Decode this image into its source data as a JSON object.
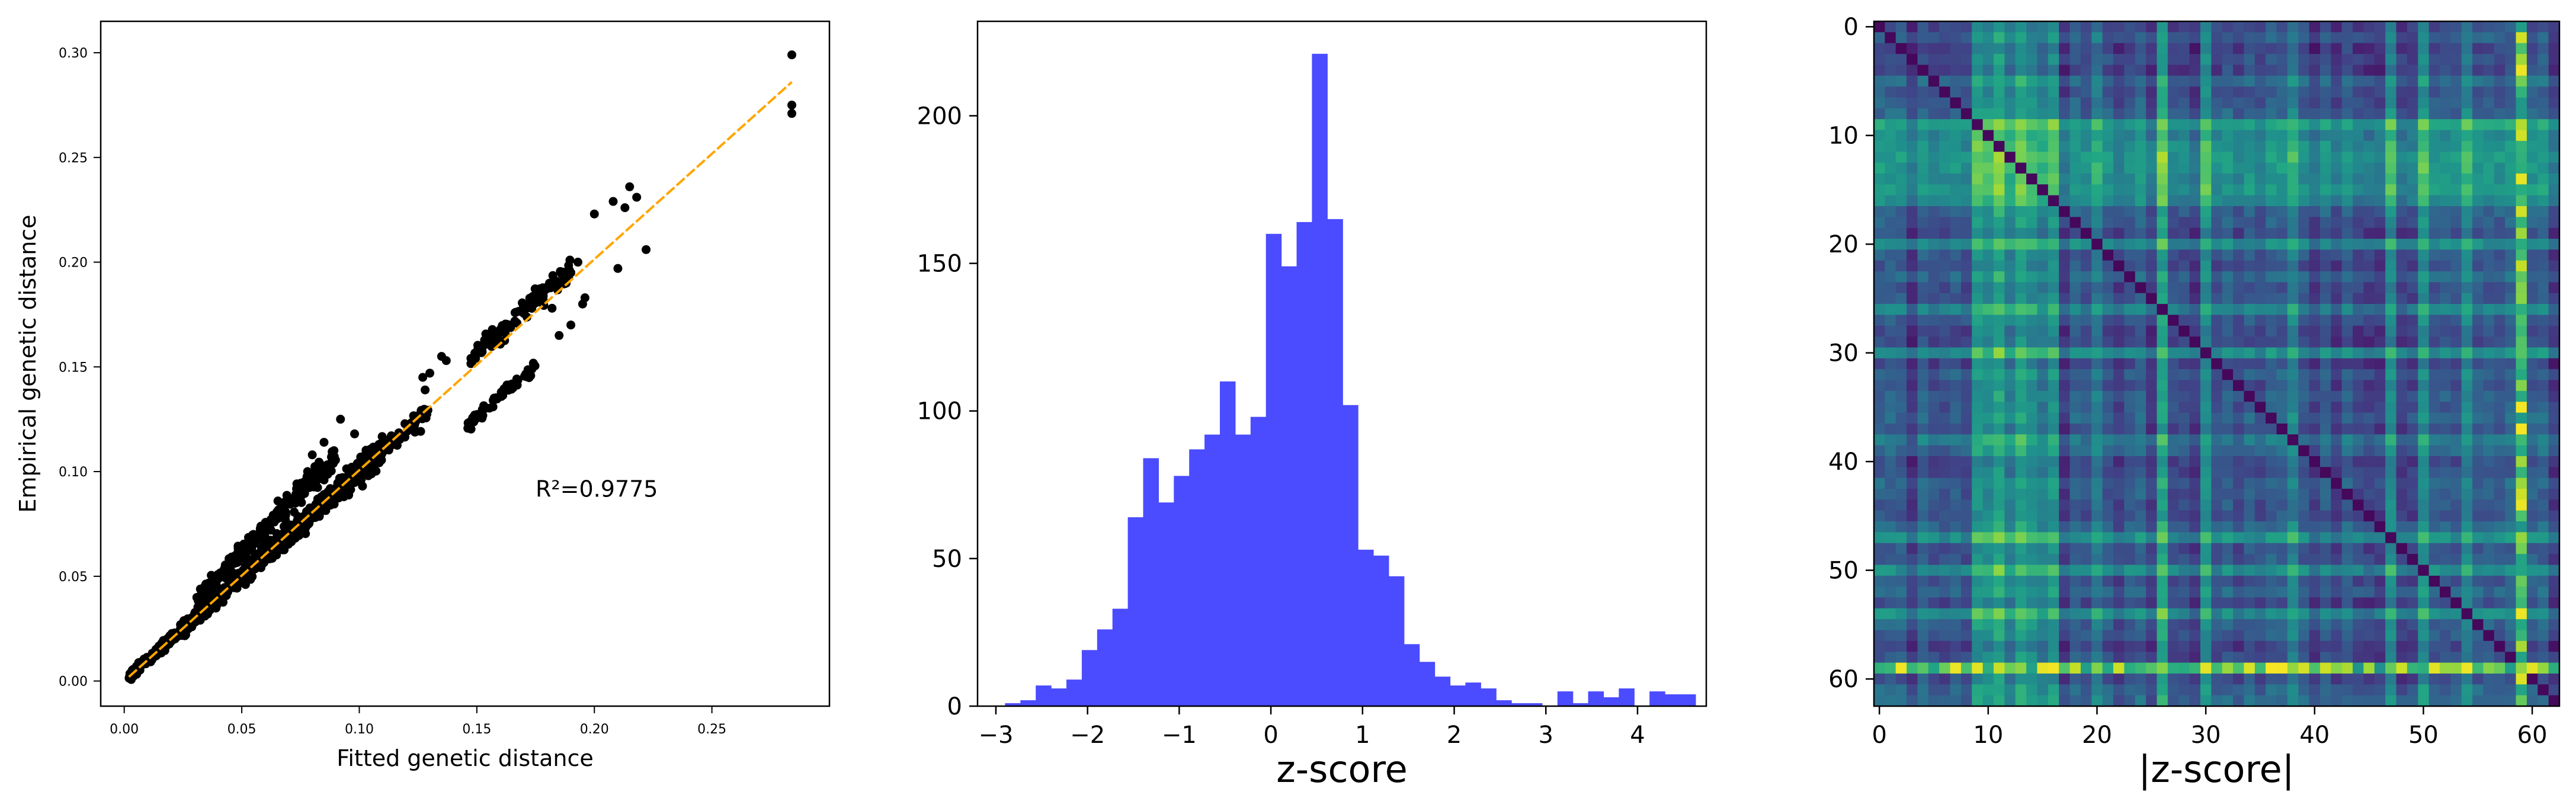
{
  "chart_data": [
    {
      "type": "scatter",
      "xlabel": "Fitted genetic distance",
      "ylabel": "Empirical genetic distance",
      "xlim": [
        -0.01,
        0.3
      ],
      "ylim": [
        -0.012,
        0.315
      ],
      "xticks": [
        0.0,
        0.05,
        0.1,
        0.15,
        0.2,
        0.25
      ],
      "xtick_labels": [
        "0.00",
        "0.05",
        "0.10",
        "0.15",
        "0.20",
        "0.25"
      ],
      "yticks": [
        0.0,
        0.05,
        0.1,
        0.15,
        0.2,
        0.25,
        0.3
      ],
      "ytick_labels": [
        "0.00",
        "0.05",
        "0.10",
        "0.15",
        "0.20",
        "0.25",
        "0.30"
      ],
      "annotation": {
        "text": "R²=0.9775",
        "x": 0.175,
        "y": 0.088
      },
      "fit_line": {
        "color": "#ffa500",
        "x": [
          0.002,
          0.284
        ],
        "y": [
          0.002,
          0.286
        ]
      },
      "point_color": "#000000",
      "clusters": [
        {
          "x_range": [
            0.002,
            0.11
          ],
          "slope": 1.0,
          "offset": 0.0,
          "spread": 0.012,
          "count": 900
        },
        {
          "x_range": [
            0.03,
            0.09
          ],
          "slope": 1.15,
          "offset": 0.004,
          "spread": 0.012,
          "count": 250
        },
        {
          "x_range": [
            0.09,
            0.13
          ],
          "slope": 1.0,
          "offset": 0.0,
          "spread": 0.008,
          "count": 90
        },
        {
          "x_range": [
            0.145,
            0.19
          ],
          "slope": 1.0,
          "offset": 0.007,
          "spread": 0.006,
          "count": 120
        },
        {
          "x_range": [
            0.145,
            0.175
          ],
          "slope": 1.0,
          "offset": -0.024,
          "spread": 0.004,
          "count": 60
        }
      ],
      "points": [
        [
          0.284,
          0.299
        ],
        [
          0.284,
          0.275
        ],
        [
          0.284,
          0.271
        ],
        [
          0.215,
          0.236
        ],
        [
          0.218,
          0.231
        ],
        [
          0.222,
          0.206
        ],
        [
          0.21,
          0.197
        ],
        [
          0.213,
          0.226
        ],
        [
          0.2,
          0.223
        ],
        [
          0.208,
          0.229
        ],
        [
          0.196,
          0.183
        ],
        [
          0.195,
          0.18
        ],
        [
          0.19,
          0.195
        ],
        [
          0.193,
          0.2
        ],
        [
          0.188,
          0.19
        ],
        [
          0.185,
          0.165
        ],
        [
          0.19,
          0.17
        ],
        [
          0.182,
          0.178
        ],
        [
          0.135,
          0.155
        ],
        [
          0.137,
          0.153
        ],
        [
          0.13,
          0.147
        ],
        [
          0.127,
          0.145
        ],
        [
          0.128,
          0.139
        ],
        [
          0.092,
          0.125
        ],
        [
          0.098,
          0.118
        ],
        [
          0.085,
          0.114
        ],
        [
          0.08,
          0.108
        ],
        [
          0.078,
          0.1
        ]
      ]
    },
    {
      "type": "bar",
      "xlabel": "z-score",
      "ylabel": "",
      "xlim": [
        -3.2,
        4.75
      ],
      "ylim": [
        0,
        232
      ],
      "color": "#4b4bff",
      "xticks": [
        -3,
        -2,
        -1,
        0,
        1,
        2,
        3,
        4
      ],
      "xtick_labels": [
        "−3",
        "−2",
        "−1",
        "0",
        "1",
        "2",
        "3",
        "4"
      ],
      "yticks": [
        0,
        50,
        100,
        150,
        200
      ],
      "ytick_labels": [
        "0",
        "50",
        "100",
        "150",
        "200"
      ],
      "bin_start": -2.9,
      "bin_width": 0.1674,
      "values": [
        1,
        2,
        7,
        6,
        9,
        19,
        26,
        33,
        64,
        84,
        69,
        78,
        87,
        92,
        110,
        92,
        98,
        160,
        149,
        164,
        221,
        165,
        102,
        53,
        51,
        44,
        21,
        15,
        10,
        7,
        8,
        6,
        2,
        1,
        1,
        0,
        5,
        1,
        5,
        3,
        6,
        0,
        5,
        4,
        4
      ]
    },
    {
      "type": "heatmap",
      "xlabel": "|z-score|",
      "ylabel": "",
      "size": 63,
      "colormap": "viridis",
      "xticks": [
        0,
        10,
        20,
        30,
        40,
        50,
        60
      ],
      "xtick_labels": [
        "0",
        "10",
        "20",
        "30",
        "40",
        "50",
        "60"
      ],
      "yticks": [
        0,
        10,
        20,
        30,
        40,
        50,
        60
      ],
      "ytick_labels": [
        "0",
        "10",
        "20",
        "30",
        "40",
        "50",
        "60"
      ],
      "strong_row": 59,
      "strong_col": 59,
      "medium_rows": [
        9,
        10,
        11,
        12,
        13,
        14,
        15,
        16,
        20,
        26,
        30,
        38,
        47,
        50,
        54
      ],
      "medium_cols": [
        9,
        10,
        11,
        12,
        13,
        14,
        15,
        16,
        20,
        26,
        30,
        38,
        47,
        50,
        54
      ],
      "seed": 7
    }
  ]
}
